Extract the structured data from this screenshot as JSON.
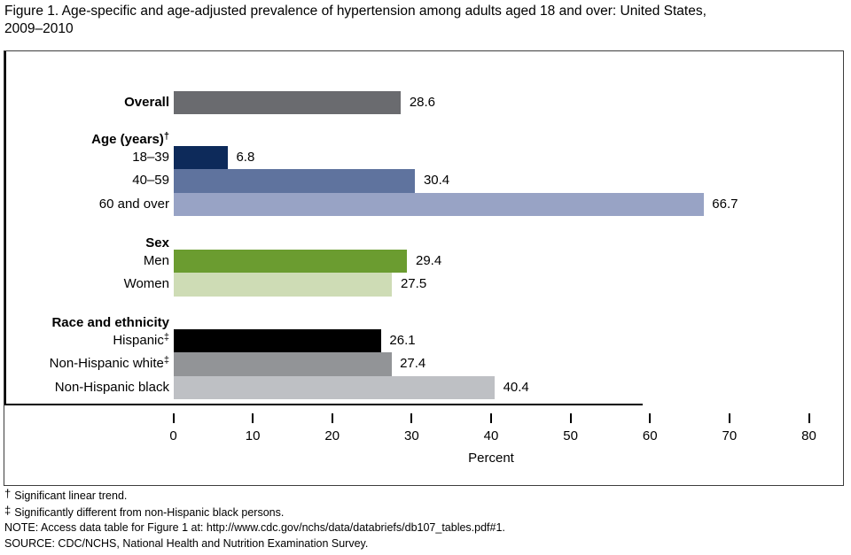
{
  "title": {
    "line1": "Figure 1. Age-specific and age-adjusted prevalence of hypertension among adults aged 18 and over: United States,",
    "line2": "2009–2010"
  },
  "chart_data": {
    "type": "bar",
    "orientation": "horizontal",
    "title": "Figure 1. Age-specific and age-adjusted prevalence of hypertension among adults aged 18 and over: United States, 2009–2010",
    "xlabel": "Percent",
    "xlim": [
      0,
      80
    ],
    "xticks": [
      0,
      10,
      20,
      30,
      40,
      50,
      60,
      70,
      80
    ],
    "grid": false,
    "value_labels_shown": true,
    "groups": [
      {
        "header": "",
        "header_marker": "",
        "rows": [
          {
            "label": "Overall",
            "marker": "",
            "bold": true,
            "value": 28.6,
            "value_label": "28.6",
            "color": "#6a6b6f"
          }
        ]
      },
      {
        "header": "Age (years)",
        "header_marker": "†",
        "rows": [
          {
            "label": "18–39",
            "marker": "",
            "bold": false,
            "value": 6.8,
            "value_label": "6.8",
            "color": "#0d2a5a"
          },
          {
            "label": "40–59",
            "marker": "",
            "bold": false,
            "value": 30.4,
            "value_label": "30.4",
            "color": "#5f739e"
          },
          {
            "label": "60 and over",
            "marker": "",
            "bold": false,
            "value": 66.7,
            "value_label": "66.7",
            "color": "#98a3c5"
          }
        ]
      },
      {
        "header": "Sex",
        "header_marker": "",
        "rows": [
          {
            "label": "Men",
            "marker": "",
            "bold": false,
            "value": 29.4,
            "value_label": "29.4",
            "color": "#6b9c30"
          },
          {
            "label": "Women",
            "marker": "",
            "bold": false,
            "value": 27.5,
            "value_label": "27.5",
            "color": "#cedcb5"
          }
        ]
      },
      {
        "header": "Race and ethnicity",
        "header_marker": "",
        "rows": [
          {
            "label": "Hispanic",
            "marker": "‡",
            "bold": false,
            "value": 26.1,
            "value_label": "26.1",
            "color": "#000000"
          },
          {
            "label": "Non-Hispanic white",
            "marker": "‡",
            "bold": false,
            "value": 27.4,
            "value_label": "27.4",
            "color": "#929497"
          },
          {
            "label": "Non-Hispanic black",
            "marker": "",
            "bold": false,
            "value": 40.4,
            "value_label": "40.4",
            "color": "#bec0c4"
          }
        ]
      }
    ]
  },
  "footnotes": [
    {
      "marker": "†",
      "text": "Significant linear trend."
    },
    {
      "marker": "‡",
      "text": "Significantly different from non-Hispanic black persons."
    },
    {
      "marker": "",
      "text": "NOTE: Access data table for Figure 1 at: http://www.cdc.gov/nchs/data/databriefs/db107_tables.pdf#1."
    },
    {
      "marker": "",
      "text": "SOURCE: CDC/NCHS, National Health and Nutrition Examination Survey."
    }
  ]
}
